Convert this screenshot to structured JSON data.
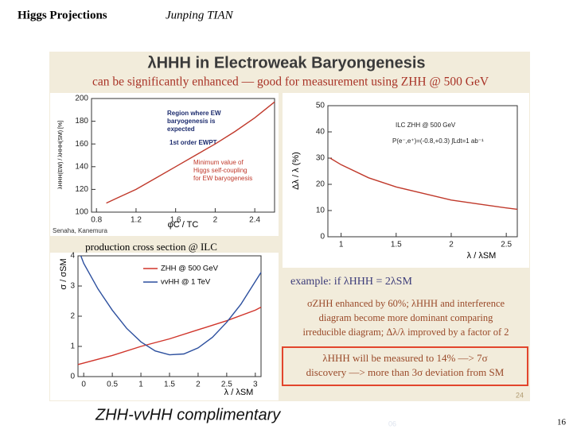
{
  "header": {
    "title": "Higgs Projections",
    "author": "Junping TIAN"
  },
  "slide": {
    "title": "λHHH in Electroweak Baryongenesis",
    "subtitle": "can be significantly enhanced — good for measurement using ZHH @ 500 GeV",
    "credit": "Senaha, Kanemura",
    "page_number": "24",
    "footer": "ZHH-vvHH complimentary",
    "faint_number": "06",
    "slide_number": "16"
  },
  "plots": [
    {
      "type": "line",
      "xlabel": "φC / TC",
      "ylabel": "λHHH(EW) / λHHH(SM) [%]",
      "xlim": [
        0.75,
        2.6
      ],
      "ylim": [
        100,
        200
      ],
      "xticks": [
        0.8,
        1.2,
        1.6,
        2,
        2.4
      ],
      "yticks": [
        100,
        120,
        140,
        160,
        180,
        200
      ],
      "annotations": [
        "Region where EW",
        "baryogenesis is",
        "expected",
        "1st order EWPT",
        "Minimum value of",
        "Higgs self-coupling",
        "for EW baryogenesis"
      ],
      "series": [
        {
          "color": "#c0392b",
          "x": [
            0.9,
            1.0,
            1.2,
            1.4,
            1.6,
            1.8,
            2.0,
            2.2,
            2.4,
            2.6
          ],
          "values": [
            108,
            112,
            120,
            130,
            140,
            150,
            160,
            171,
            183,
            197
          ]
        }
      ]
    },
    {
      "type": "line",
      "xlabel": "λ / λSM",
      "ylabel": "Δλ / λ (%)",
      "xlim": [
        0.88,
        2.6
      ],
      "ylim": [
        0,
        50
      ],
      "xticks": [
        1,
        1.5,
        2,
        2.5
      ],
      "yticks": [
        0,
        10,
        20,
        30,
        40,
        50
      ],
      "annotations": [
        "ILC ZHH @ 500 GeV",
        "P(e⁻,e⁺)=(-0.8,+0.3)  ∫Ldt=1 ab⁻¹"
      ],
      "series": [
        {
          "color": "#c0392b",
          "x": [
            0.9,
            1.0,
            1.25,
            1.5,
            1.75,
            2.0,
            2.25,
            2.5,
            2.6
          ],
          "values": [
            30,
            27.5,
            22.5,
            19,
            16.5,
            14,
            12.5,
            11,
            10.5
          ]
        }
      ]
    },
    {
      "type": "line",
      "title": "production cross section @ ILC",
      "xlabel": "λ / λSM",
      "ylabel": "σ / σSM",
      "xlim": [
        -0.1,
        3.1
      ],
      "ylim": [
        0,
        4
      ],
      "xticks": [
        0,
        0.5,
        1,
        1.5,
        2,
        2.5,
        3
      ],
      "yticks": [
        0,
        1,
        2,
        3,
        4
      ],
      "series": [
        {
          "name": "ZHH @ 500 GeV",
          "color": "#d0352b",
          "x": [
            -0.1,
            0,
            0.5,
            1,
            1.5,
            2,
            2.5,
            3,
            3.1
          ],
          "values": [
            0.4,
            0.45,
            0.7,
            1.0,
            1.25,
            1.55,
            1.85,
            2.2,
            2.3
          ]
        },
        {
          "name": "vvHH @ 1 TeV",
          "color": "#2c4f9e",
          "x": [
            -0.05,
            0,
            0.25,
            0.5,
            0.75,
            1,
            1.25,
            1.5,
            1.75,
            2,
            2.25,
            2.5,
            2.75,
            3,
            3.1
          ],
          "values": [
            4.0,
            3.75,
            2.9,
            2.2,
            1.6,
            1.15,
            0.85,
            0.72,
            0.75,
            0.95,
            1.3,
            1.8,
            2.4,
            3.15,
            3.45
          ]
        }
      ]
    }
  ],
  "example": {
    "heading": "example: if λHHH = 2λSM",
    "body": [
      "σZHH enhanced by 60%; λHHH and interference",
      "diagram become more dominant comparing",
      "irreducible diagram; Δλ/λ improved by a factor of 2"
    ],
    "highlight": [
      "λHHH will be measured to 14% —> 7σ",
      "discovery —> more than 3σ deviation from SM"
    ]
  }
}
